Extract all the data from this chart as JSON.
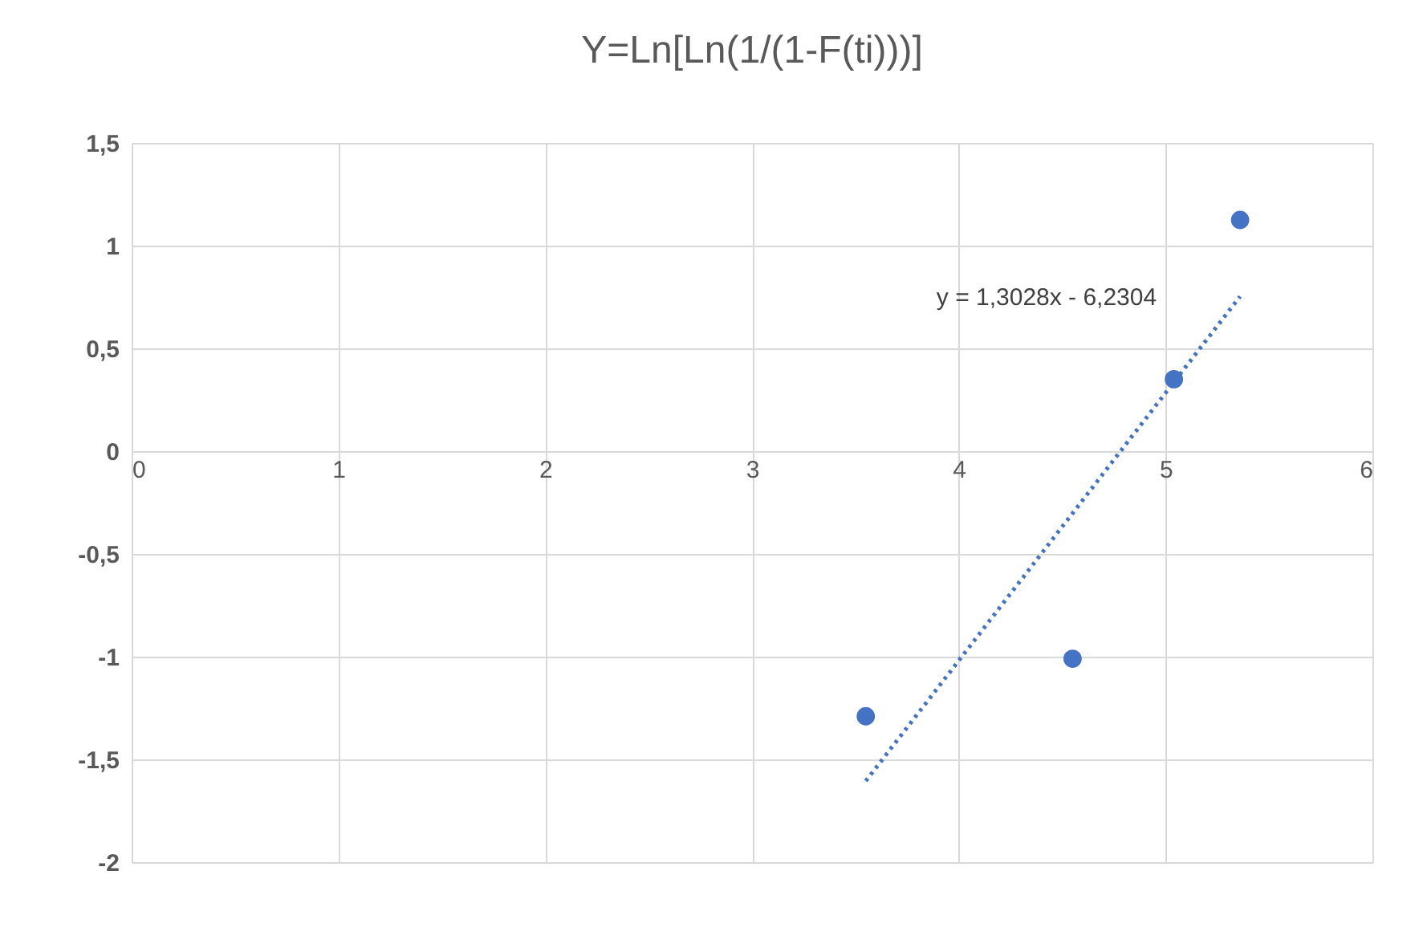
{
  "chart_data": {
    "type": "scatter",
    "title": "Y=Ln[Ln(1/(1-F(ti)))]",
    "x": [
      3.55,
      4.55,
      5.04,
      5.36
    ],
    "series": [
      {
        "color": "#4472c4",
        "marker": "circle",
        "values": [
          -1.29,
          -1.01,
          0.35,
          1.125
        ]
      },
      {
        "type": "line",
        "color": "#4472c4",
        "marker": "none",
        "line_style": "dotted",
        "x": [
          3.55,
          5.36
        ],
        "values": [
          -1.605,
          0.753
        ]
      }
    ],
    "annotations": [
      "y = 1,3028x - 6,2304"
    ],
    "xlim": [
      0,
      6
    ],
    "xticks": [
      0,
      1,
      2,
      3,
      4,
      5,
      6
    ],
    "ylim": [
      -2,
      1.5
    ],
    "yticks": [
      {
        "value": 1.5,
        "label": "1,5"
      },
      1,
      {
        "value": 0.5,
        "label": "0,5"
      },
      0,
      {
        "value": -0.5,
        "label": "-0,5"
      },
      -1,
      {
        "value": -1.5,
        "label": "-1,5"
      },
      -2
    ],
    "grid": true
  }
}
